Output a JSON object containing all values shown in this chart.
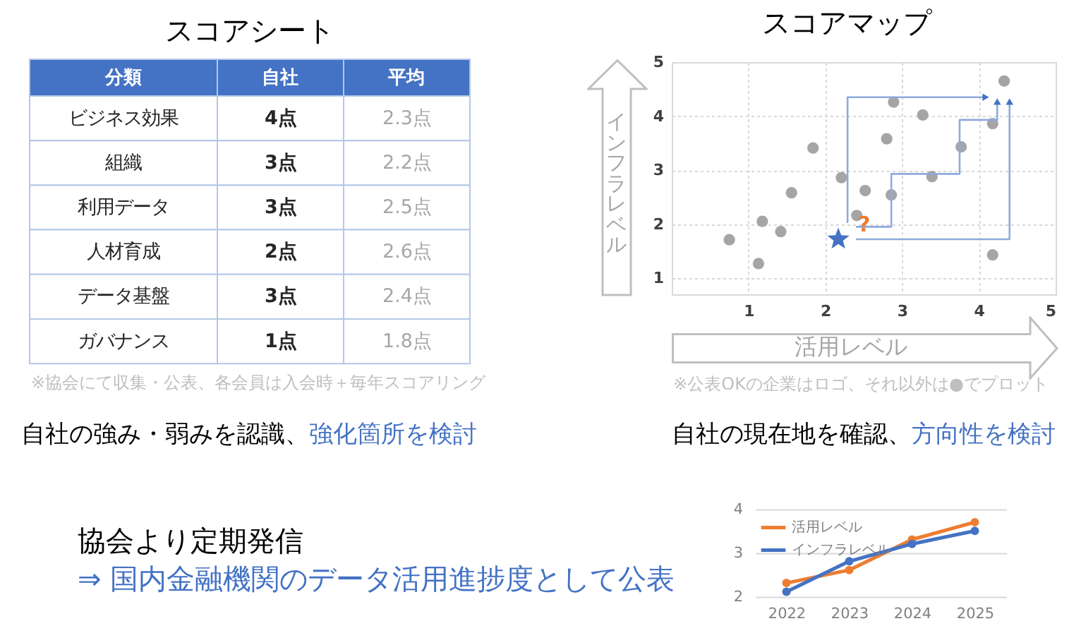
{
  "chart_data": [
    {
      "type": "other",
      "title": "スコアシート",
      "ylabel": "分類",
      "categories": [
        "ビジネス効果",
        "組織",
        "利用データ",
        "人材育成",
        "データ基盤",
        "ガバナンス"
      ],
      "series": [
        {
          "name": "自社",
          "values": [
            4,
            3,
            3,
            2,
            3,
            1
          ],
          "value_labels": [
            "4点",
            "3点",
            "3点",
            "2点",
            "3点",
            "1点"
          ]
        },
        {
          "name": "平均",
          "values": [
            2.3,
            2.2,
            2.5,
            2.6,
            2.4,
            1.8
          ],
          "value_labels": [
            "2.3点",
            "2.2点",
            "2.5点",
            "2.6点",
            "2.4点",
            "1.8点"
          ]
        }
      ],
      "annotations": [
        "※協会にて収集・公表、各会員は入会時＋毎年スコアリング",
        "自社の強み・弱みを認識、",
        "強化箇所を検討"
      ]
    },
    {
      "type": "scatter",
      "title": "スコアマップ",
      "xlabel": "活用レベル",
      "ylabel": "インフラレベル",
      "xlim": [
        0,
        5
      ],
      "xticks": [
        1,
        2,
        3,
        4,
        5
      ],
      "ylim": [
        0.7,
        5
      ],
      "yticks": [
        1,
        2,
        3,
        4,
        5
      ],
      "grid": true,
      "marker": "circle",
      "series": [
        {
          "color": "#a5a5a5",
          "x": [
            0.75,
            1.18,
            1.42,
            1.13,
            1.56,
            1.84,
            2.21,
            2.41,
            2.52,
            2.86,
            2.8,
            2.89,
            3.27,
            3.39,
            3.77,
            4.18,
            4.33,
            4.18
          ],
          "values": [
            1.71,
            2.05,
            1.86,
            1.27,
            2.58,
            3.41,
            2.86,
            2.16,
            2.62,
            2.54,
            3.58,
            4.26,
            4.02,
            2.88,
            3.43,
            3.86,
            4.65,
            1.43
          ]
        },
        {
          "color": "#4472c4",
          "marker": "star",
          "x": [
            2.17
          ],
          "values": [
            1.72
          ]
        }
      ],
      "annotations": [
        "?",
        "※公表OKの企業はロゴ、それ以外は●でプロット",
        "自社の現在地を確認、",
        "方向性を検討"
      ]
    },
    {
      "type": "line",
      "categories": [
        "2022",
        "2023",
        "2024",
        "2025"
      ],
      "ylim": [
        2,
        4
      ],
      "yticks": [
        2,
        3,
        4
      ],
      "grid": "y",
      "marker": "circle",
      "legend": "top left",
      "series": [
        {
          "name": "活用レベル",
          "color": "#ed7d31",
          "values": [
            2.3,
            2.6,
            3.3,
            3.7
          ]
        },
        {
          "name": "インフラレベル",
          "color": "#4472c4",
          "values": [
            2.1,
            2.8,
            3.2,
            3.5
          ]
        }
      ],
      "annotations": [
        "協会より定期発信",
        "⇒ 国内金融機関のデータ活用進捗度として公表"
      ]
    }
  ]
}
